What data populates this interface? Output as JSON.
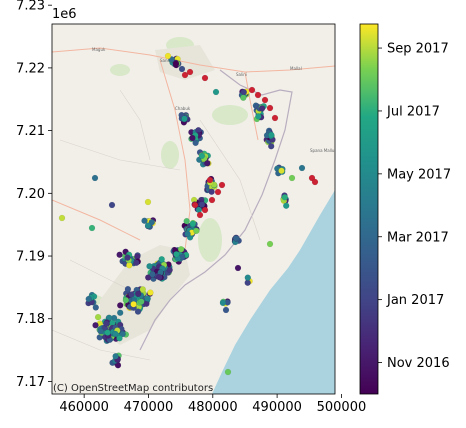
{
  "map": {
    "attribution": "(C) OpenStreetMap contributors",
    "offset_label": "1e6",
    "place_labels": [
      "Maguk",
      "Chabuk",
      "Salini",
      "Sansul",
      "Mallal",
      "Spana Mallu"
    ]
  },
  "chart_data": {
    "type": "scatter",
    "xlim": [
      455000,
      499000
    ],
    "ylim": [
      7168000,
      7227000
    ],
    "x_ticks": [
      460000,
      470000,
      480000,
      490000,
      500000
    ],
    "x_tick_labels": [
      "460000",
      "470000",
      "480000",
      "490000",
      "500000"
    ],
    "y_ticks": [
      7170000,
      7180000,
      7190000,
      7200000,
      7210000,
      7220000,
      7230000
    ],
    "y_tick_labels": [
      "7.17",
      "7.18",
      "7.19",
      "7.20",
      "7.21",
      "7.22",
      "7.23"
    ],
    "colorbar": {
      "colormap": "viridis",
      "ticks": [
        "Nov 2016",
        "Jan 2017",
        "Mar 2017",
        "May 2017",
        "Jul 2017",
        "Sep 2017"
      ],
      "tick_positions": [
        0.055,
        0.245,
        0.435,
        0.625,
        0.815,
        1.005
      ]
    },
    "highlight_color": "#cc2233",
    "colors": {
      "sea": "#aad3df",
      "land": "#f2efe9",
      "urban": "#e7e4da",
      "green": "#d8e8c8",
      "road": "#f3b6a0"
    }
  }
}
